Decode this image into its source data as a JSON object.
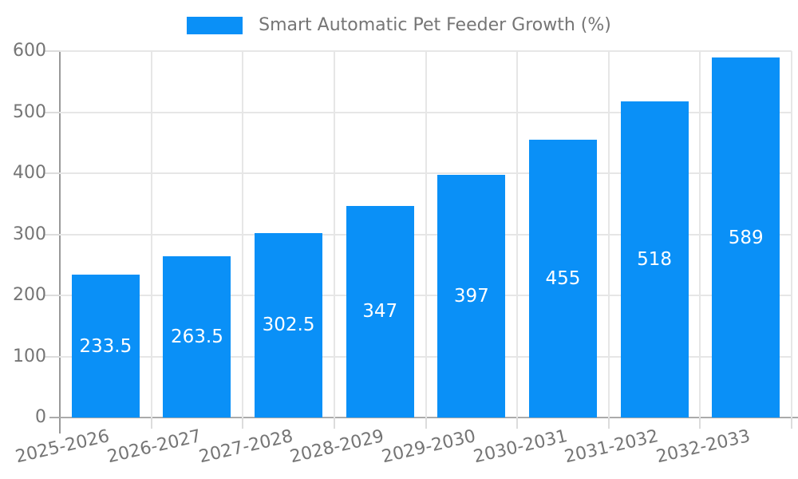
{
  "chart_data": {
    "type": "bar",
    "legend": {
      "label": "Smart Automatic Pet Feeder Growth (%)",
      "position": "top-center"
    },
    "categories": [
      "2025-2026",
      "2026-2027",
      "2027-2028",
      "2028-2029",
      "2029-2030",
      "2030-2031",
      "2031-2032",
      "2032-2033"
    ],
    "values": [
      233.5,
      263.5,
      302.5,
      347,
      397,
      455,
      518,
      589
    ],
    "value_labels": [
      "233.5",
      "263.5",
      "302.5",
      "347",
      "397",
      "455",
      "518",
      "589"
    ],
    "xlabel": "",
    "ylabel": "",
    "ylim": [
      0,
      600
    ],
    "yticks": [
      0,
      100,
      200,
      300,
      400,
      500,
      600
    ],
    "grid": true,
    "colors": {
      "bar": "#0a90f7",
      "value_label": "#ffffff",
      "text": "#757575",
      "grid": "#e6e6e6",
      "tick": "#dcdcdc",
      "y_axis": "#999999",
      "x_axis": "#aaaaaa",
      "background": "#ffffff"
    }
  }
}
